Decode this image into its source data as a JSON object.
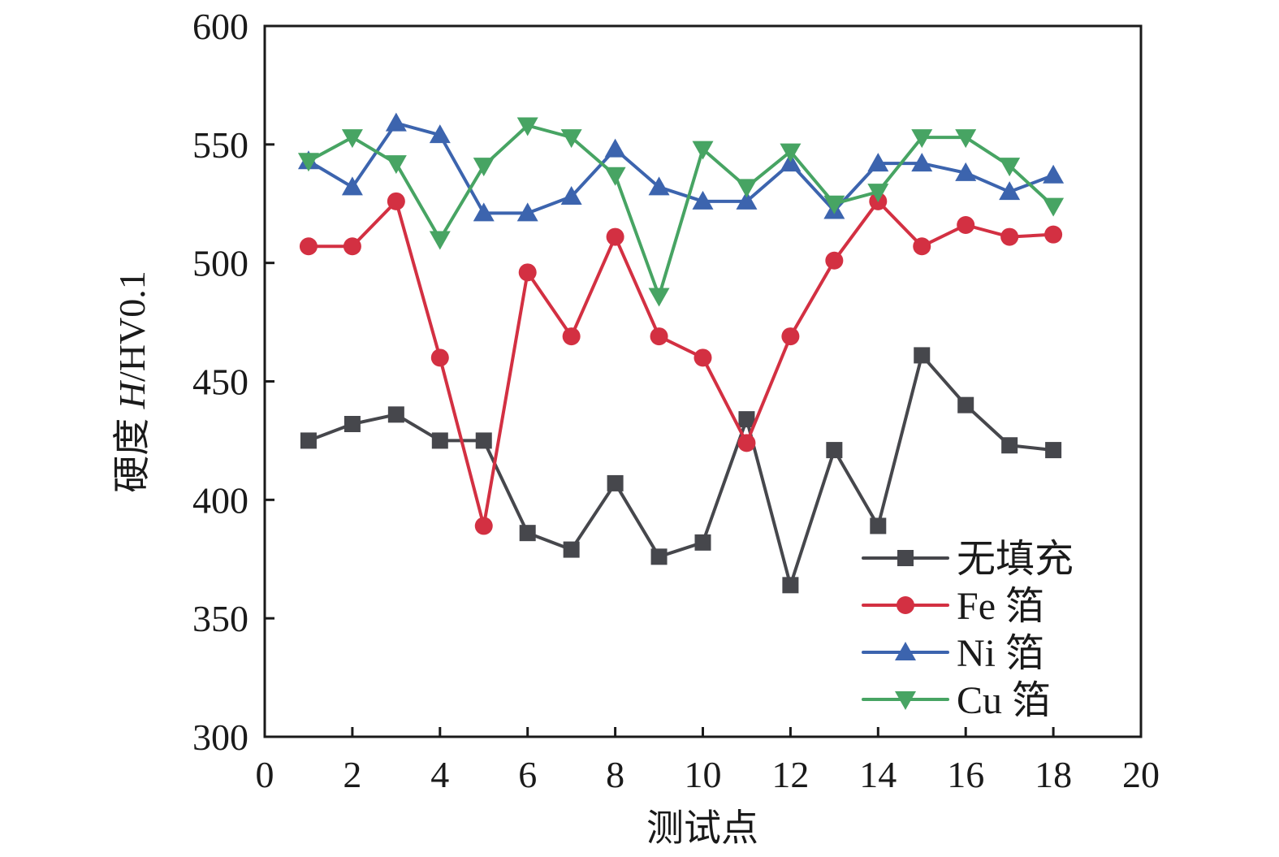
{
  "chart_data": {
    "type": "line",
    "title": "",
    "xlabel": "测试点",
    "ylabel_prefix": "硬度 ",
    "ylabel_italic": "H",
    "ylabel_suffix": "/HV0.1",
    "xlim": [
      0,
      20
    ],
    "ylim": [
      300,
      600
    ],
    "xticks": [
      0,
      2,
      4,
      6,
      8,
      10,
      12,
      14,
      16,
      18,
      20
    ],
    "yticks": [
      300,
      350,
      400,
      450,
      500,
      550,
      600
    ],
    "xtick_labels": [
      "0",
      "2",
      "4",
      "6",
      "8",
      "10",
      "12",
      "14",
      "16",
      "18",
      "20"
    ],
    "ytick_labels": [
      "300",
      "350",
      "400",
      "450",
      "500",
      "550",
      "600"
    ],
    "grid": false,
    "legend_position": "bottom-right",
    "x": [
      1,
      2,
      3,
      4,
      5,
      6,
      7,
      8,
      9,
      10,
      11,
      12,
      13,
      14,
      15,
      16,
      17,
      18
    ],
    "series": [
      {
        "name": "无填充",
        "marker": "square",
        "color": "#46474c",
        "values": [
          425,
          432,
          436,
          425,
          425,
          386,
          379,
          407,
          376,
          382,
          434,
          364,
          421,
          389,
          461,
          440,
          423,
          421
        ]
      },
      {
        "name": "Fe 箔",
        "marker": "circle",
        "color": "#d33042",
        "values": [
          507,
          507,
          526,
          460,
          389,
          496,
          469,
          511,
          469,
          460,
          424,
          469,
          501,
          526,
          507,
          516,
          511,
          512
        ]
      },
      {
        "name": "Ni 箔",
        "marker": "triangle-up",
        "color": "#3c64ae",
        "values": [
          543,
          532,
          559,
          554,
          521,
          521,
          528,
          548,
          532,
          526,
          526,
          542,
          522,
          542,
          542,
          538,
          530,
          537
        ]
      },
      {
        "name": "Cu 箔",
        "marker": "triangle-down",
        "color": "#47a463",
        "values": [
          543,
          553,
          542,
          510,
          541,
          558,
          553,
          537,
          486,
          548,
          532,
          547,
          525,
          530,
          553,
          553,
          541,
          524
        ]
      }
    ]
  }
}
